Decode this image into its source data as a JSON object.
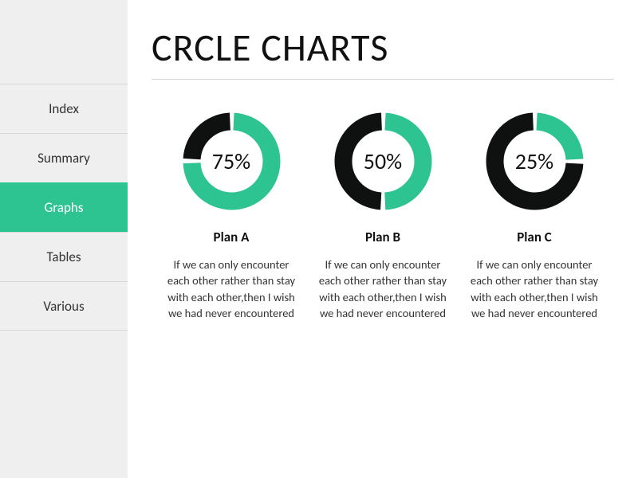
{
  "colors": {
    "accent": "#2ec492",
    "secondary": "#0f1110",
    "sidebar_bg": "#efefef",
    "sidebar_border": "#d8d8d8",
    "page_bg": "#ffffff",
    "text": "#111111"
  },
  "sidebar": {
    "items": [
      {
        "label": "Index",
        "active": false
      },
      {
        "label": "Summary",
        "active": false
      },
      {
        "label": "Graphs",
        "active": true
      },
      {
        "label": "Tables",
        "active": false
      },
      {
        "label": "Various",
        "active": false
      }
    ]
  },
  "page": {
    "title": "CRCLE CHARTS"
  },
  "charts": [
    {
      "type": "donut",
      "percent": 75,
      "percent_label": "75%",
      "fill_color": "#2ec492",
      "track_color": "#0f1110",
      "gap_deg": 6,
      "stroke_width": 22,
      "radius": 50,
      "start_angle_deg": 0,
      "label_fontsize": 28,
      "title": "Plan A",
      "desc": "If we can only encounter each other rather than stay with each other,then I wish we had never encountered"
    },
    {
      "type": "donut",
      "percent": 50,
      "percent_label": "50%",
      "fill_color": "#2ec492",
      "track_color": "#0f1110",
      "gap_deg": 6,
      "stroke_width": 22,
      "radius": 50,
      "start_angle_deg": 0,
      "label_fontsize": 28,
      "title": "Plan B",
      "desc": "If we can only encounter each other rather than stay with each other,then I wish we had never encountered"
    },
    {
      "type": "donut",
      "percent": 25,
      "percent_label": "25%",
      "fill_color": "#2ec492",
      "track_color": "#0f1110",
      "gap_deg": 6,
      "stroke_width": 22,
      "radius": 50,
      "start_angle_deg": 0,
      "label_fontsize": 28,
      "title": "Plan C",
      "desc": "If we can only encounter each other rather than stay with each other,then I wish we had never encountered"
    }
  ],
  "typography": {
    "title_fontsize": 48,
    "title_weight": 400,
    "plan_title_fontsize": 17,
    "plan_title_weight": 700,
    "desc_fontsize": 14.5,
    "sidebar_fontsize": 17,
    "font_family": "Segoe UI, Calibri, Arial, sans-serif"
  }
}
